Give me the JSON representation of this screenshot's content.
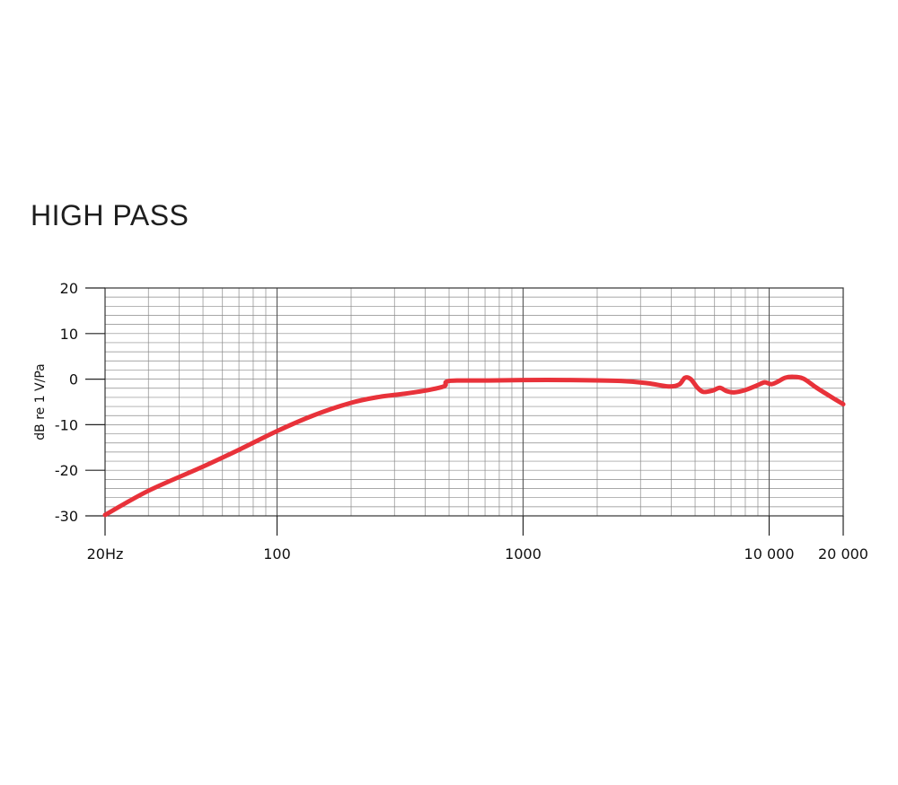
{
  "chart_data": {
    "type": "line",
    "title": "HIGH PASS",
    "xlabel": "",
    "ylabel": "dB re 1 V/Pa",
    "x_scale": "log",
    "xlim": [
      20,
      20000
    ],
    "ylim": [
      -30,
      20
    ],
    "grid": true,
    "x_ticks": [
      {
        "value": 20,
        "label": "20Hz"
      },
      {
        "value": 100,
        "label": "100"
      },
      {
        "value": 1000,
        "label": "1000"
      },
      {
        "value": 10000,
        "label": "10 000"
      },
      {
        "value": 20000,
        "label": "20 000"
      }
    ],
    "y_ticks": [
      {
        "value": 20,
        "label": "20"
      },
      {
        "value": 10,
        "label": "10"
      },
      {
        "value": 0,
        "label": "0"
      },
      {
        "value": -10,
        "label": "-10"
      },
      {
        "value": -20,
        "label": "-20"
      },
      {
        "value": -30,
        "label": "-30"
      }
    ],
    "series": [
      {
        "color": "#e8323a",
        "x": [
          20,
          30,
          50,
          70,
          100,
          140,
          200,
          260,
          330,
          420,
          480,
          500,
          700,
          1000,
          1500,
          2500,
          3200,
          3900,
          4300,
          4550,
          4800,
          5100,
          5400,
          5900,
          6300,
          6700,
          7200,
          8000,
          9000,
          9600,
          10200,
          10800,
          11600,
          12600,
          13800,
          15500,
          17500,
          20000
        ],
        "y": [
          -29.8,
          -24.5,
          -19.2,
          -15.5,
          -11.4,
          -8.0,
          -5.2,
          -3.9,
          -3.2,
          -2.3,
          -1.5,
          -0.4,
          -0.3,
          -0.2,
          -0.2,
          -0.4,
          -0.9,
          -1.6,
          -1.2,
          0.3,
          0.0,
          -1.8,
          -2.8,
          -2.5,
          -1.9,
          -2.6,
          -2.9,
          -2.4,
          -1.3,
          -0.7,
          -1.1,
          -0.6,
          0.3,
          0.5,
          0.1,
          -1.8,
          -3.6,
          -5.5
        ]
      }
    ]
  }
}
